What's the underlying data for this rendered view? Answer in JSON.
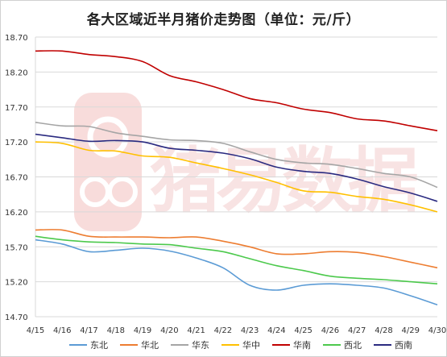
{
  "chart_data": {
    "type": "line",
    "title": "各大区域近半月猪价走势图（单位：元/斤）",
    "watermark": "猪易数据",
    "xlabel": "",
    "ylabel": "",
    "x": [
      "4/15",
      "4/16",
      "4/17",
      "4/18",
      "4/19",
      "4/20",
      "4/21",
      "4/22",
      "4/23",
      "4/24",
      "4/25",
      "4/26",
      "4/27",
      "4/28",
      "4/29",
      "4/30"
    ],
    "yticks": [
      "14.70",
      "15.20",
      "15.70",
      "16.20",
      "16.70",
      "17.20",
      "17.70",
      "18.20",
      "18.70"
    ],
    "ylim": [
      14.7,
      18.7
    ],
    "grid": true,
    "legend_position": "bottom",
    "series": [
      {
        "name": "东北",
        "color": "#5b9bd5",
        "values": [
          15.8,
          15.74,
          15.63,
          15.65,
          15.68,
          15.64,
          15.54,
          15.4,
          15.15,
          15.08,
          15.15,
          15.17,
          15.15,
          15.11,
          15.0,
          14.87
        ]
      },
      {
        "name": "华北",
        "color": "#ed7d31",
        "values": [
          15.94,
          15.94,
          15.85,
          15.84,
          15.84,
          15.83,
          15.84,
          15.78,
          15.7,
          15.6,
          15.6,
          15.63,
          15.62,
          15.56,
          15.48,
          15.4
        ]
      },
      {
        "name": "华东",
        "color": "#a5a5a5",
        "values": [
          17.48,
          17.43,
          17.42,
          17.33,
          17.28,
          17.23,
          17.22,
          17.18,
          17.06,
          16.95,
          16.9,
          16.88,
          16.82,
          16.75,
          16.7,
          16.55
        ]
      },
      {
        "name": "华中",
        "color": "#ffc000",
        "values": [
          17.2,
          17.18,
          17.08,
          17.07,
          17.0,
          16.98,
          16.9,
          16.82,
          16.73,
          16.62,
          16.5,
          16.48,
          16.42,
          16.38,
          16.3,
          16.2
        ]
      },
      {
        "name": "华南",
        "color": "#c00000",
        "values": [
          18.5,
          18.5,
          18.45,
          18.42,
          18.35,
          18.15,
          18.06,
          17.95,
          17.82,
          17.76,
          17.67,
          17.62,
          17.53,
          17.5,
          17.43,
          17.36
        ]
      },
      {
        "name": "西北",
        "color": "#4cc94c",
        "values": [
          15.85,
          15.8,
          15.77,
          15.76,
          15.74,
          15.73,
          15.68,
          15.63,
          15.53,
          15.43,
          15.36,
          15.28,
          15.25,
          15.23,
          15.2,
          15.17
        ]
      },
      {
        "name": "西南",
        "color": "#2a2a80",
        "values": [
          17.31,
          17.26,
          17.21,
          17.22,
          17.2,
          17.11,
          17.08,
          17.04,
          16.96,
          16.84,
          16.78,
          16.75,
          16.67,
          16.56,
          16.47,
          16.35
        ]
      }
    ]
  }
}
